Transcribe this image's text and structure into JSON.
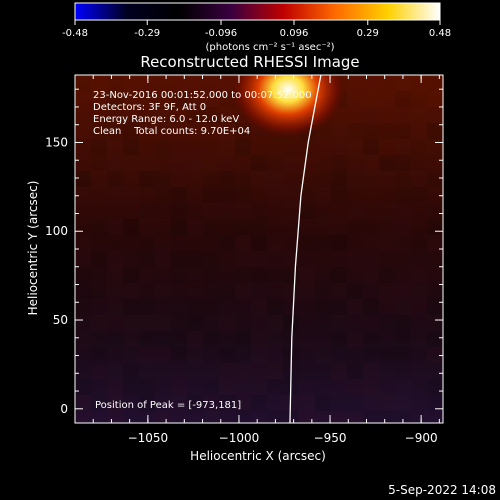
{
  "colorbar": {
    "ticks": [
      "-0.48",
      "-0.29",
      "-0.096",
      "0.096",
      "0.29",
      "0.48"
    ],
    "tick_values": [
      -0.48,
      -0.29,
      -0.096,
      0.096,
      0.29,
      0.48
    ],
    "range": [
      -0.48,
      0.48
    ],
    "unit_label": "(photons cm⁻² s⁻¹ asec⁻²)",
    "colors": [
      "#0000ff",
      "#000020",
      "#000000",
      "#3a0040",
      "#c00000",
      "#ff6a00",
      "#ffd000",
      "#ffffff"
    ]
  },
  "chart_data": {
    "type": "heatmap",
    "title": "Reconstructed RHESSI Image",
    "xlabel": "Heliocentric X (arcsec)",
    "ylabel": "Heliocentric Y (arcsec)",
    "xlim": [
      -1090,
      -888
    ],
    "ylim": [
      -8,
      188
    ],
    "x_ticks": [
      -1050,
      -1000,
      -950,
      -900
    ],
    "x_tick_labels": [
      "−1050",
      "−1000",
      "−950",
      "−900"
    ],
    "y_ticks": [
      0,
      50,
      100,
      150
    ],
    "y_tick_labels": [
      "0",
      "50",
      "100",
      "150"
    ],
    "info_lines": [
      "23-Nov-2016 00:01:52.000 to 00:07:52.000",
      "Detectors: 3F 9F, Att 0",
      "Energy Range: 6.0 - 12.0 keV",
      "Clean    Total counts: 9.70E+04"
    ],
    "peak_label": "Position of Peak = [-973,181]",
    "peak": [
      -973,
      181
    ],
    "limb_curve": [
      [
        -972,
        -8
      ],
      [
        -971,
        40
      ],
      [
        -969,
        80
      ],
      [
        -966,
        120
      ],
      [
        -962,
        150
      ],
      [
        -958,
        172
      ],
      [
        -955,
        188
      ]
    ]
  },
  "footer": {
    "timestamp": "5-Sep-2022 14:08"
  }
}
